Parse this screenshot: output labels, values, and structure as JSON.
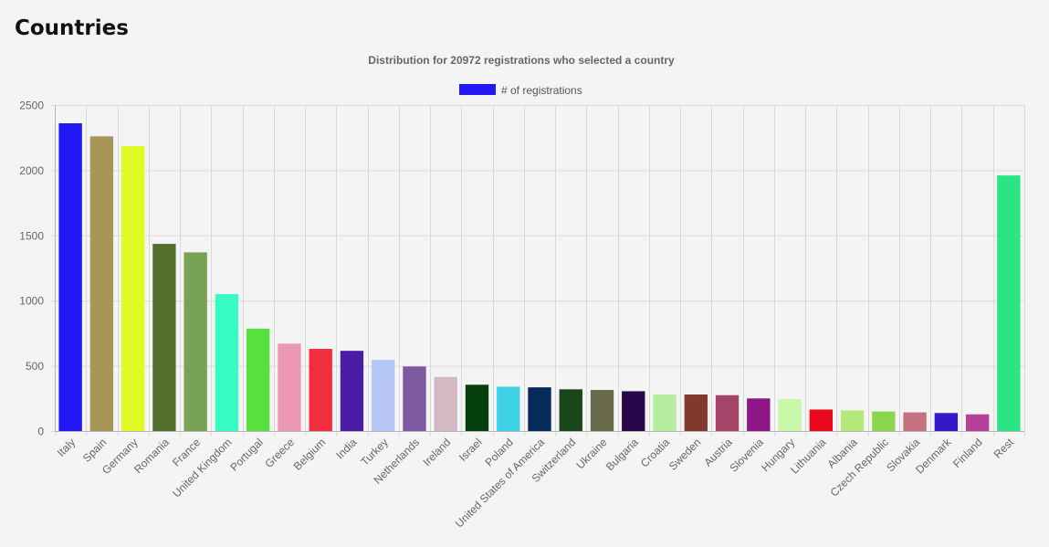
{
  "page": {
    "title": "Countries"
  },
  "chart_data": {
    "type": "bar",
    "title": "Distribution for 20972 registrations who selected a country",
    "legend_position": "top",
    "grid": true,
    "ylim": [
      0,
      2500
    ],
    "yticks": [
      0,
      500,
      1000,
      1500,
      2000,
      2500
    ],
    "categories": [
      "Italy",
      "Spain",
      "Germany",
      "Romania",
      "France",
      "United Kingdom",
      "Portugal",
      "Greece",
      "Belgium",
      "India",
      "Turkey",
      "Netherlands",
      "Ireland",
      "Israel",
      "Poland",
      "United States of America",
      "Switzerland",
      "Ukraine",
      "Bulgaria",
      "Croatia",
      "Sweden",
      "Austria",
      "Slovenia",
      "Hungary",
      "Lithuania",
      "Albania",
      "Czech Republic",
      "Slovakia",
      "Denmark",
      "Finland",
      "Rest"
    ],
    "series": [
      {
        "name": "# of registrations",
        "legend_color": "#2118f5",
        "values": [
          2360,
          2260,
          2185,
          1435,
          1370,
          1050,
          785,
          670,
          630,
          615,
          545,
          495,
          415,
          355,
          340,
          335,
          320,
          315,
          305,
          280,
          280,
          275,
          250,
          245,
          165,
          158,
          150,
          143,
          138,
          128,
          1960
        ],
        "colors": [
          "#2118f5",
          "#a69658",
          "#e0fa25",
          "#53702f",
          "#78a355",
          "#37fcc6",
          "#58e03f",
          "#ec98b3",
          "#f22e3e",
          "#4a1ca5",
          "#b7c8f8",
          "#7d59a0",
          "#d4b9c5",
          "#063f0e",
          "#3ed2e6",
          "#062a5a",
          "#17471a",
          "#686a49",
          "#270749",
          "#b5eea1",
          "#80392a",
          "#a54468",
          "#8f1687",
          "#c8f7a8",
          "#e90a1e",
          "#b4e87a",
          "#8ad64c",
          "#c57280",
          "#3319c8",
          "#b7409b",
          "#2be483"
        ]
      }
    ]
  }
}
